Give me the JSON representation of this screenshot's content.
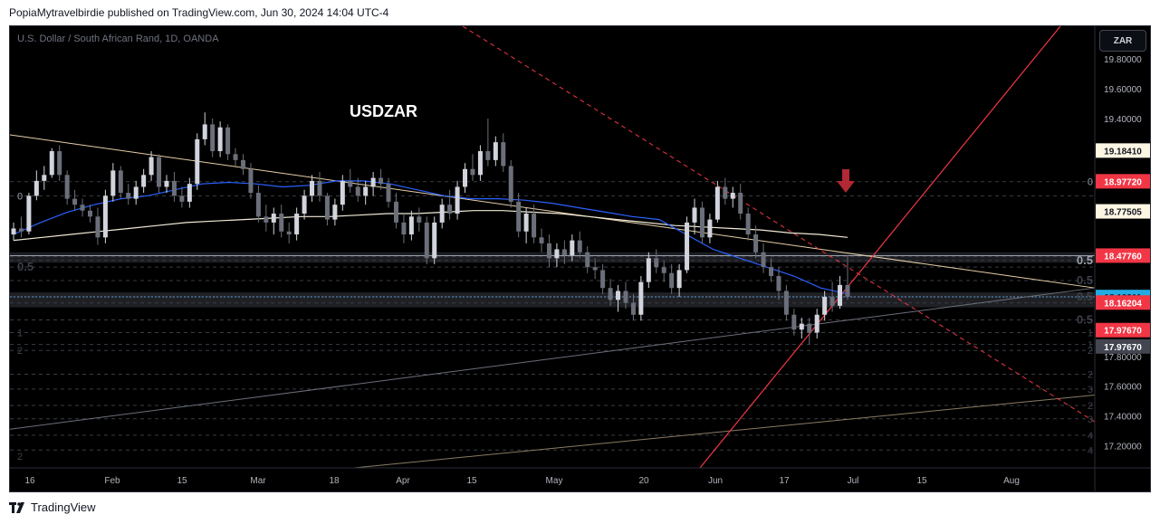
{
  "header": {
    "publisher_text": "PopiaMytravelbirdie published on TradingView.com, Jun 30, 2024 14:04 UTC-4"
  },
  "symbol": {
    "description": "U.S. Dollar / South African Rand, 1D, OANDA"
  },
  "currency_button": {
    "label": "ZAR"
  },
  "footer": {
    "brand": "TradingView"
  },
  "colors": {
    "background": "#000000",
    "up_candle": "#d1d4dc",
    "down_candle": "#6b6f7a",
    "ema_blue": "#2962ff",
    "sma_white": "#f0ead6",
    "trend_red": "#f23645",
    "trend_beige": "#e6cfa8",
    "accent_red_label": "#f23645",
    "cyan_label": "#22abe3",
    "gray_label": "#434651"
  },
  "chart_data": {
    "type": "candlestick",
    "title": "USDZAR",
    "xlabel": "",
    "ylabel": "",
    "ylim": [
      17.05,
      20.02
    ],
    "grid": false,
    "price_ticks": [
      "19.80000",
      "19.60000",
      "19.40000",
      "17.80000",
      "17.60000",
      "17.40000",
      "17.20000"
    ],
    "date_ticks": [
      "16",
      "Feb",
      "15",
      "Mar",
      "18",
      "Apr",
      "15",
      "May",
      "20",
      "Jun",
      "17",
      "Jul",
      "15",
      "Aug"
    ],
    "price_labels": [
      {
        "value": "19.18410",
        "price": 19.1841,
        "style": "light"
      },
      {
        "value": "18.97720",
        "price": 18.9772,
        "style": "red"
      },
      {
        "value": "18.77505",
        "price": 18.7751,
        "style": "light"
      },
      {
        "value": "18.47760",
        "price": 18.4776,
        "style": "red"
      },
      {
        "value": "18.19911",
        "price": 18.1991,
        "style": "cyan"
      },
      {
        "value": "18.16204",
        "price": 18.162,
        "style": "red"
      },
      {
        "value": "17.97670",
        "price": 17.9767,
        "style": "red"
      },
      {
        "value": "17.97670",
        "price": 17.8667,
        "style": "gray"
      }
    ],
    "fib_labels": [
      {
        "text": "0",
        "price": 18.975,
        "side": "right"
      },
      {
        "text": "0",
        "price": 18.88,
        "side": "left"
      },
      {
        "text": "0.5",
        "price": 18.4,
        "side": "left"
      },
      {
        "text": "0.5",
        "price": 18.445,
        "side": "right"
      },
      {
        "text": "0.5",
        "price": 18.31,
        "side": "right"
      },
      {
        "text": "0.5",
        "price": 18.2,
        "side": "right"
      },
      {
        "text": "0.5",
        "price": 18.045,
        "side": "right"
      },
      {
        "text": "1",
        "price": 17.96,
        "side": "right"
      },
      {
        "text": "1",
        "price": 17.96,
        "side": "left"
      },
      {
        "text": "1",
        "price": 17.88,
        "side": "right"
      },
      {
        "text": "2",
        "price": 17.84,
        "side": "right"
      },
      {
        "text": "2",
        "price": 17.84,
        "side": "left"
      },
      {
        "text": "2",
        "price": 17.68,
        "side": "right"
      },
      {
        "text": "3",
        "price": 17.58,
        "side": "right"
      },
      {
        "text": "2",
        "price": 17.47,
        "side": "right"
      },
      {
        "text": "3",
        "price": 17.38,
        "side": "right"
      },
      {
        "text": "4",
        "price": 17.27,
        "side": "right"
      },
      {
        "text": "4",
        "price": 17.17,
        "side": "right"
      },
      {
        "text": "2",
        "price": 17.13,
        "side": "left"
      }
    ],
    "candles": [
      {
        "o": 18.62,
        "h": 18.7,
        "l": 18.58,
        "c": 18.66
      },
      {
        "o": 18.66,
        "h": 18.74,
        "l": 18.6,
        "c": 18.64
      },
      {
        "o": 18.64,
        "h": 18.9,
        "l": 18.62,
        "c": 18.88
      },
      {
        "o": 18.88,
        "h": 19.05,
        "l": 18.85,
        "c": 18.98
      },
      {
        "o": 18.98,
        "h": 19.08,
        "l": 18.92,
        "c": 19.02
      },
      {
        "o": 19.02,
        "h": 19.2,
        "l": 19.0,
        "c": 19.18
      },
      {
        "o": 19.18,
        "h": 19.22,
        "l": 18.98,
        "c": 19.02
      },
      {
        "o": 19.02,
        "h": 19.05,
        "l": 18.82,
        "c": 18.86
      },
      {
        "o": 18.86,
        "h": 18.92,
        "l": 18.78,
        "c": 18.82
      },
      {
        "o": 18.82,
        "h": 18.86,
        "l": 18.74,
        "c": 18.78
      },
      {
        "o": 18.78,
        "h": 18.82,
        "l": 18.7,
        "c": 18.74
      },
      {
        "o": 18.74,
        "h": 18.8,
        "l": 18.55,
        "c": 18.6
      },
      {
        "o": 18.6,
        "h": 18.92,
        "l": 18.56,
        "c": 18.88
      },
      {
        "o": 18.88,
        "h": 19.1,
        "l": 18.84,
        "c": 19.05
      },
      {
        "o": 19.05,
        "h": 19.08,
        "l": 18.86,
        "c": 18.9
      },
      {
        "o": 18.9,
        "h": 18.96,
        "l": 18.82,
        "c": 18.86
      },
      {
        "o": 18.86,
        "h": 18.98,
        "l": 18.82,
        "c": 18.94
      },
      {
        "o": 18.94,
        "h": 19.06,
        "l": 18.9,
        "c": 19.02
      },
      {
        "o": 19.02,
        "h": 19.18,
        "l": 18.98,
        "c": 19.14
      },
      {
        "o": 19.14,
        "h": 19.16,
        "l": 18.9,
        "c": 18.94
      },
      {
        "o": 18.94,
        "h": 19.02,
        "l": 18.9,
        "c": 18.98
      },
      {
        "o": 18.98,
        "h": 19.04,
        "l": 18.84,
        "c": 18.88
      },
      {
        "o": 18.88,
        "h": 18.94,
        "l": 18.8,
        "c": 18.84
      },
      {
        "o": 18.84,
        "h": 19.0,
        "l": 18.8,
        "c": 18.96
      },
      {
        "o": 18.96,
        "h": 19.3,
        "l": 18.92,
        "c": 19.26
      },
      {
        "o": 19.26,
        "h": 19.44,
        "l": 19.22,
        "c": 19.36
      },
      {
        "o": 19.36,
        "h": 19.4,
        "l": 19.14,
        "c": 19.18
      },
      {
        "o": 19.18,
        "h": 19.38,
        "l": 19.14,
        "c": 19.34
      },
      {
        "o": 19.34,
        "h": 19.36,
        "l": 19.12,
        "c": 19.16
      },
      {
        "o": 19.16,
        "h": 19.2,
        "l": 19.08,
        "c": 19.12
      },
      {
        "o": 19.12,
        "h": 19.16,
        "l": 19.02,
        "c": 19.06
      },
      {
        "o": 19.06,
        "h": 19.1,
        "l": 18.86,
        "c": 18.9
      },
      {
        "o": 18.9,
        "h": 18.95,
        "l": 18.7,
        "c": 18.74
      },
      {
        "o": 18.74,
        "h": 18.82,
        "l": 18.64,
        "c": 18.7
      },
      {
        "o": 18.7,
        "h": 18.8,
        "l": 18.62,
        "c": 18.76
      },
      {
        "o": 18.76,
        "h": 18.82,
        "l": 18.6,
        "c": 18.64
      },
      {
        "o": 18.64,
        "h": 18.7,
        "l": 18.56,
        "c": 18.62
      },
      {
        "o": 18.62,
        "h": 18.8,
        "l": 18.58,
        "c": 18.76
      },
      {
        "o": 18.76,
        "h": 18.92,
        "l": 18.72,
        "c": 18.88
      },
      {
        "o": 18.88,
        "h": 19.02,
        "l": 18.84,
        "c": 18.98
      },
      {
        "o": 18.98,
        "h": 19.04,
        "l": 18.84,
        "c": 18.88
      },
      {
        "o": 18.88,
        "h": 18.9,
        "l": 18.68,
        "c": 18.72
      },
      {
        "o": 18.72,
        "h": 18.86,
        "l": 18.68,
        "c": 18.82
      },
      {
        "o": 18.82,
        "h": 19.02,
        "l": 18.78,
        "c": 18.98
      },
      {
        "o": 18.98,
        "h": 19.06,
        "l": 18.9,
        "c": 18.94
      },
      {
        "o": 18.94,
        "h": 19.0,
        "l": 18.84,
        "c": 18.88
      },
      {
        "o": 18.88,
        "h": 18.98,
        "l": 18.82,
        "c": 18.94
      },
      {
        "o": 18.94,
        "h": 19.04,
        "l": 18.88,
        "c": 19.0
      },
      {
        "o": 19.0,
        "h": 19.06,
        "l": 18.92,
        "c": 18.96
      },
      {
        "o": 18.96,
        "h": 19.0,
        "l": 18.8,
        "c": 18.84
      },
      {
        "o": 18.84,
        "h": 18.9,
        "l": 18.66,
        "c": 18.7
      },
      {
        "o": 18.7,
        "h": 18.76,
        "l": 18.56,
        "c": 18.62
      },
      {
        "o": 18.62,
        "h": 18.78,
        "l": 18.58,
        "c": 18.74
      },
      {
        "o": 18.74,
        "h": 18.8,
        "l": 18.64,
        "c": 18.7
      },
      {
        "o": 18.7,
        "h": 18.74,
        "l": 18.42,
        "c": 18.46
      },
      {
        "o": 18.46,
        "h": 18.74,
        "l": 18.42,
        "c": 18.7
      },
      {
        "o": 18.7,
        "h": 18.86,
        "l": 18.66,
        "c": 18.82
      },
      {
        "o": 18.82,
        "h": 18.92,
        "l": 18.72,
        "c": 18.76
      },
      {
        "o": 18.76,
        "h": 18.98,
        "l": 18.72,
        "c": 18.94
      },
      {
        "o": 18.94,
        "h": 19.1,
        "l": 18.9,
        "c": 19.06
      },
      {
        "o": 19.06,
        "h": 19.16,
        "l": 18.98,
        "c": 19.02
      },
      {
        "o": 19.02,
        "h": 19.22,
        "l": 18.98,
        "c": 19.18
      },
      {
        "o": 19.18,
        "h": 19.4,
        "l": 19.08,
        "c": 19.12
      },
      {
        "o": 19.12,
        "h": 19.28,
        "l": 19.08,
        "c": 19.24
      },
      {
        "o": 19.24,
        "h": 19.3,
        "l": 19.04,
        "c": 19.08
      },
      {
        "o": 19.08,
        "h": 19.12,
        "l": 18.8,
        "c": 18.84
      },
      {
        "o": 18.84,
        "h": 18.9,
        "l": 18.6,
        "c": 18.64
      },
      {
        "o": 18.64,
        "h": 18.8,
        "l": 18.56,
        "c": 18.76
      },
      {
        "o": 18.76,
        "h": 18.82,
        "l": 18.56,
        "c": 18.6
      },
      {
        "o": 18.6,
        "h": 18.66,
        "l": 18.5,
        "c": 18.56
      },
      {
        "o": 18.56,
        "h": 18.62,
        "l": 18.4,
        "c": 18.46
      },
      {
        "o": 18.46,
        "h": 18.56,
        "l": 18.4,
        "c": 18.52
      },
      {
        "o": 18.52,
        "h": 18.58,
        "l": 18.42,
        "c": 18.48
      },
      {
        "o": 18.48,
        "h": 18.62,
        "l": 18.44,
        "c": 18.58
      },
      {
        "o": 18.58,
        "h": 18.64,
        "l": 18.46,
        "c": 18.5
      },
      {
        "o": 18.5,
        "h": 18.54,
        "l": 18.36,
        "c": 18.4
      },
      {
        "o": 18.4,
        "h": 18.46,
        "l": 18.32,
        "c": 18.38
      },
      {
        "o": 18.38,
        "h": 18.42,
        "l": 18.22,
        "c": 18.26
      },
      {
        "o": 18.26,
        "h": 18.32,
        "l": 18.14,
        "c": 18.18
      },
      {
        "o": 18.18,
        "h": 18.28,
        "l": 18.1,
        "c": 18.24
      },
      {
        "o": 18.24,
        "h": 18.3,
        "l": 18.12,
        "c": 18.16
      },
      {
        "o": 18.16,
        "h": 18.22,
        "l": 18.04,
        "c": 18.08
      },
      {
        "o": 18.08,
        "h": 18.34,
        "l": 18.04,
        "c": 18.3
      },
      {
        "o": 18.3,
        "h": 18.5,
        "l": 18.26,
        "c": 18.46
      },
      {
        "o": 18.46,
        "h": 18.52,
        "l": 18.36,
        "c": 18.4
      },
      {
        "o": 18.4,
        "h": 18.44,
        "l": 18.3,
        "c": 18.36
      },
      {
        "o": 18.36,
        "h": 18.42,
        "l": 18.22,
        "c": 18.26
      },
      {
        "o": 18.26,
        "h": 18.42,
        "l": 18.2,
        "c": 18.38
      },
      {
        "o": 18.38,
        "h": 18.74,
        "l": 18.36,
        "c": 18.7
      },
      {
        "o": 18.7,
        "h": 18.86,
        "l": 18.62,
        "c": 18.8
      },
      {
        "o": 18.8,
        "h": 18.84,
        "l": 18.56,
        "c": 18.6
      },
      {
        "o": 18.6,
        "h": 18.76,
        "l": 18.56,
        "c": 18.72
      },
      {
        "o": 18.72,
        "h": 18.98,
        "l": 18.7,
        "c": 18.94
      },
      {
        "o": 18.94,
        "h": 19.0,
        "l": 18.82,
        "c": 18.86
      },
      {
        "o": 18.86,
        "h": 18.94,
        "l": 18.8,
        "c": 18.9
      },
      {
        "o": 18.9,
        "h": 18.96,
        "l": 18.72,
        "c": 18.76
      },
      {
        "o": 18.76,
        "h": 18.8,
        "l": 18.58,
        "c": 18.62
      },
      {
        "o": 18.62,
        "h": 18.68,
        "l": 18.46,
        "c": 18.5
      },
      {
        "o": 18.5,
        "h": 18.56,
        "l": 18.36,
        "c": 18.4
      },
      {
        "o": 18.4,
        "h": 18.46,
        "l": 18.3,
        "c": 18.34
      },
      {
        "o": 18.34,
        "h": 18.4,
        "l": 18.18,
        "c": 18.24
      },
      {
        "o": 18.24,
        "h": 18.28,
        "l": 18.04,
        "c": 18.08
      },
      {
        "o": 18.08,
        "h": 18.12,
        "l": 17.94,
        "c": 17.98
      },
      {
        "o": 17.98,
        "h": 18.06,
        "l": 17.92,
        "c": 18.02
      },
      {
        "o": 18.02,
        "h": 18.06,
        "l": 17.88,
        "c": 17.96
      },
      {
        "o": 17.96,
        "h": 18.12,
        "l": 17.92,
        "c": 18.08
      },
      {
        "o": 18.08,
        "h": 18.24,
        "l": 18.04,
        "c": 18.2
      },
      {
        "o": 18.2,
        "h": 18.3,
        "l": 18.1,
        "c": 18.14
      },
      {
        "o": 18.14,
        "h": 18.34,
        "l": 18.12,
        "c": 18.28
      },
      {
        "o": 18.28,
        "h": 18.48,
        "l": 18.18,
        "c": 18.2
      }
    ],
    "ema_blue": [
      18.62,
      18.7,
      18.77,
      18.82,
      18.86,
      18.88,
      18.92,
      18.96,
      18.97,
      18.96,
      18.94,
      18.95,
      18.98,
      18.98,
      18.96,
      18.92,
      18.88,
      18.86,
      18.86,
      18.85,
      18.83,
      18.8,
      18.77,
      18.74,
      18.72,
      18.62,
      18.52,
      18.46,
      18.4,
      18.34,
      18.26,
      18.22
    ],
    "sma_white": [
      18.58,
      18.6,
      18.62,
      18.64,
      18.66,
      18.68,
      18.7,
      18.71,
      18.72,
      18.73,
      18.74,
      18.74,
      18.75,
      18.76,
      18.76,
      18.77,
      18.78,
      18.78,
      18.77,
      18.76,
      18.74,
      18.72,
      18.7,
      18.68,
      18.67,
      18.66,
      18.65,
      18.63,
      18.62,
      18.6
    ]
  }
}
